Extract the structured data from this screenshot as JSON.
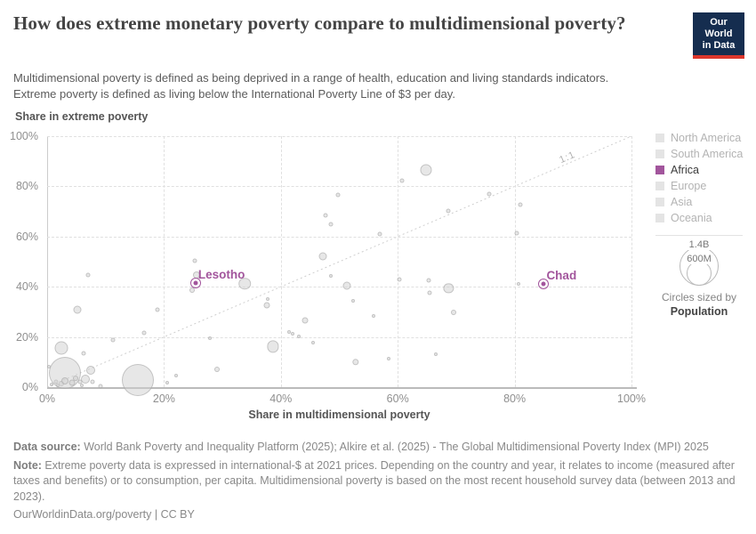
{
  "header": {
    "title": "How does extreme monetary poverty compare to multidimensional poverty?",
    "subtitle_line1": "Multidimensional poverty is defined as being deprived in a range of health, education and living standards indicators.",
    "subtitle_line2": "Extreme poverty is defined as living below the International Poverty Line of $3 per day.",
    "logo": {
      "line1": "Our World",
      "line2": "in Data"
    }
  },
  "chart_data": {
    "type": "scatter",
    "title": "How does extreme monetary poverty compare to multidimensional poverty?",
    "xlabel": "Share in multidimensional poverty",
    "ylabel": "Share in extreme poverty",
    "xlim": [
      0,
      100
    ],
    "ylim": [
      0,
      100
    ],
    "grid": "dashed",
    "x_ticks": [
      {
        "v": 0,
        "label": "0%"
      },
      {
        "v": 20,
        "label": "20%"
      },
      {
        "v": 40,
        "label": "40%"
      },
      {
        "v": 60,
        "label": "60%"
      },
      {
        "v": 80,
        "label": "80%"
      },
      {
        "v": 100,
        "label": "100%"
      }
    ],
    "y_ticks": [
      {
        "v": 0,
        "label": "0%"
      },
      {
        "v": 20,
        "label": "20%"
      },
      {
        "v": 40,
        "label": "40%"
      },
      {
        "v": 60,
        "label": "60%"
      },
      {
        "v": 80,
        "label": "80%"
      },
      {
        "v": 100,
        "label": "100%"
      }
    ],
    "reference_line": {
      "label": "1:1",
      "from": [
        0,
        0
      ],
      "to": [
        100,
        100
      ]
    },
    "labeled_points": [
      {
        "name": "Lesotho",
        "x": 25.4,
        "y": 41.5,
        "color": "#a2559c",
        "continent": "Africa"
      },
      {
        "name": "Chad",
        "x": 85.0,
        "y": 41.0,
        "color": "#a2559c",
        "continent": "Africa"
      }
    ],
    "points": [
      [
        0.3,
        8,
        2
      ],
      [
        0.8,
        1,
        2
      ],
      [
        1.5,
        2.2,
        2.5
      ],
      [
        1.8,
        0.6,
        2
      ],
      [
        2.4,
        1.4,
        3
      ],
      [
        3.1,
        5.5,
        18
      ],
      [
        3,
        2.6,
        4
      ],
      [
        4.2,
        1.6,
        3.5
      ],
      [
        4.8,
        3.6,
        3
      ],
      [
        5.6,
        2.1,
        2.5
      ],
      [
        5.9,
        0.8,
        2
      ],
      [
        6.3,
        13.3,
        2.5
      ],
      [
        6.6,
        3.1,
        5
      ],
      [
        7.4,
        6.6,
        5
      ],
      [
        7.7,
        2.1,
        2.5
      ],
      [
        9.1,
        0.5,
        2.5
      ],
      [
        2.5,
        15.5,
        7.5
      ],
      [
        5.2,
        31,
        4.5
      ],
      [
        7,
        44.8,
        2.5
      ],
      [
        11.3,
        18.7,
        2.5
      ],
      [
        15.5,
        2.8,
        18
      ],
      [
        16.6,
        21.5,
        2.5
      ],
      [
        18.8,
        31,
        2.5
      ],
      [
        20.5,
        1.8,
        2
      ],
      [
        22,
        4.6,
        2
      ],
      [
        25.2,
        50.3,
        2.5
      ],
      [
        25.6,
        44.6,
        4
      ],
      [
        24.8,
        38.5,
        3
      ],
      [
        27.9,
        19.4,
        2
      ],
      [
        29.1,
        7.2,
        3
      ],
      [
        33.8,
        41.2,
        6.8
      ],
      [
        37.7,
        35.1,
        2
      ],
      [
        37.6,
        32.6,
        3.5
      ],
      [
        38.7,
        16.2,
        6.6
      ],
      [
        41.4,
        22,
        2
      ],
      [
        42,
        21.2,
        2
      ],
      [
        43.1,
        20.2,
        2
      ],
      [
        44.1,
        26.6,
        3.5
      ],
      [
        45.5,
        17.8,
        2
      ],
      [
        47.2,
        52,
        4.5
      ],
      [
        47.6,
        68.5,
        2.5
      ],
      [
        48.5,
        64.8,
        2.5
      ],
      [
        48.6,
        44.3,
        2
      ],
      [
        49.8,
        76.6,
        2.5
      ],
      [
        51.3,
        40.3,
        4.5
      ],
      [
        52.4,
        34.5,
        2
      ],
      [
        52.8,
        10,
        3.7
      ],
      [
        55.9,
        28.2,
        2
      ],
      [
        56.9,
        61,
        2.5
      ],
      [
        58.5,
        11.5,
        2
      ],
      [
        60.2,
        42.9,
        2.5
      ],
      [
        60.8,
        82.3,
        2.5
      ],
      [
        64.8,
        86.4,
        6.5
      ],
      [
        65.3,
        42.6,
        2.5
      ],
      [
        65.4,
        37.6,
        2.5
      ],
      [
        66.5,
        13.1,
        2
      ],
      [
        68.7,
        39.5,
        5.6
      ],
      [
        68.6,
        70.3,
        2.5
      ],
      [
        69.5,
        29.7,
        3
      ],
      [
        75.7,
        76.8,
        2.5
      ],
      [
        80.3,
        61.4,
        2.5
      ],
      [
        80.6,
        41.2,
        2
      ],
      [
        81,
        72.7,
        2.5
      ]
    ],
    "point_color": "#d9d9d9",
    "accent_color": "#a2559c"
  },
  "legend": {
    "items": [
      {
        "label": "North America",
        "color": "#e4e4e4",
        "active": false
      },
      {
        "label": "South America",
        "color": "#e4e4e4",
        "active": false
      },
      {
        "label": "Africa",
        "color": "#a2559c",
        "active": true
      },
      {
        "label": "Europe",
        "color": "#e4e4e4",
        "active": false
      },
      {
        "label": "Asia",
        "color": "#e4e4e4",
        "active": false
      },
      {
        "label": "Oceania",
        "color": "#e4e4e4",
        "active": false
      }
    ],
    "size_legend": {
      "outer_label": "1.4B",
      "inner_label": "600M",
      "caption": "Circles sized by",
      "caption_bold": "Population"
    }
  },
  "footer": {
    "data_source_label": "Data source:",
    "data_source_text": " World Bank Poverty and Inequality Platform (2025); Alkire et al. (2025) - The Global Multidimensional Poverty Index (MPI) 2025",
    "note_label": "Note:",
    "note_text": " Extreme poverty data is expressed in international-$ at 2021 prices. Depending on the country and year, it relates to income (measured after taxes and benefits) or to consumption, per capita. Multidimensional poverty is based on the most recent household survey data (between 2013 and 2023).",
    "link": "OurWorldinData.org/poverty",
    "license_suffix": " | CC BY"
  }
}
